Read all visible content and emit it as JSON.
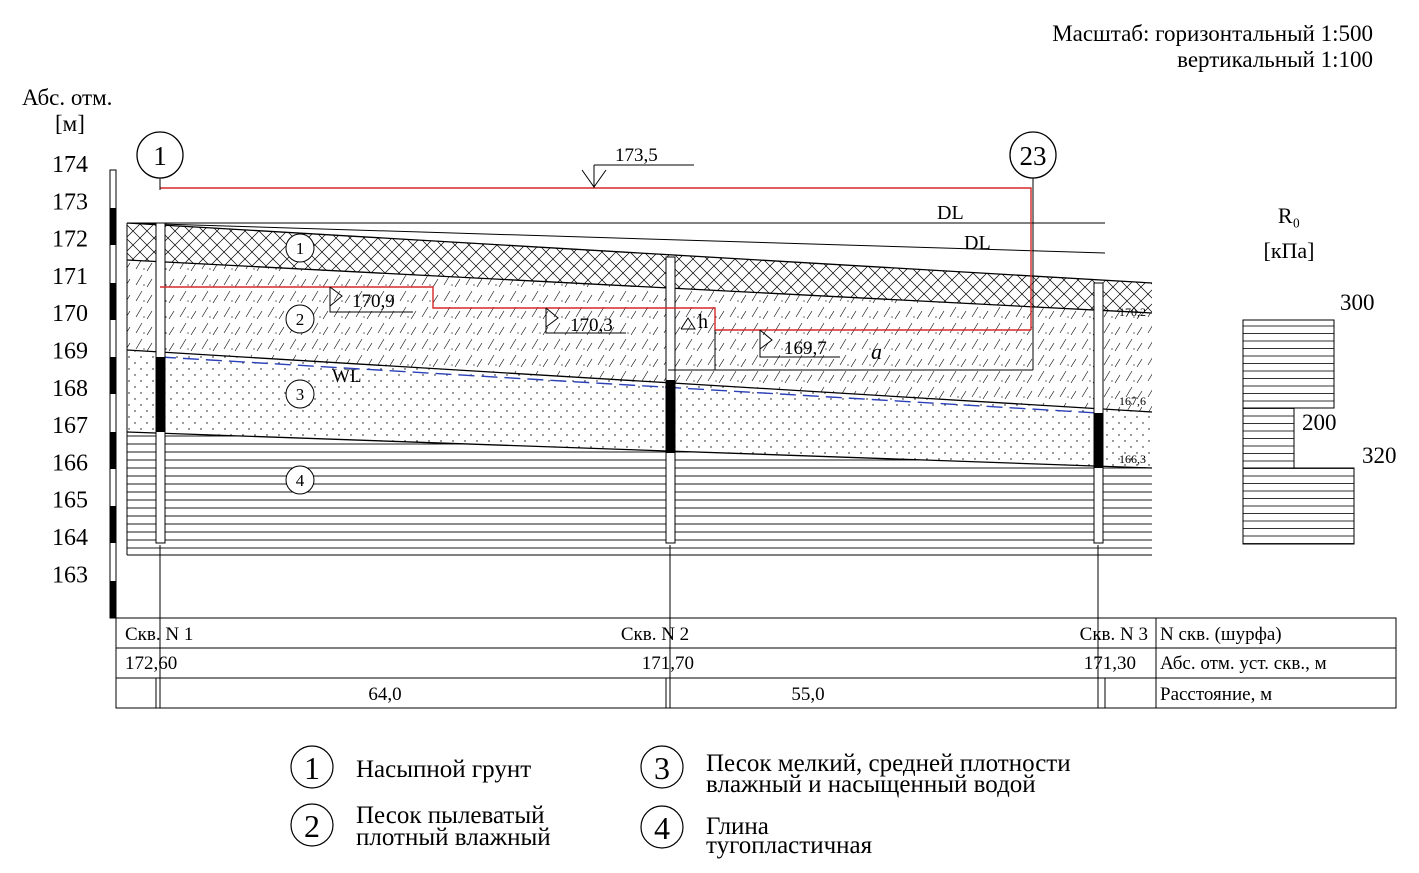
{
  "scale": {
    "line1": "Масштаб: горизонтальный 1:500",
    "line2": "вертикальный 1:100"
  },
  "axis": {
    "title_line1": "Абс. отм.",
    "title_line2": "[м]",
    "ticks": [
      "174",
      "173",
      "172",
      "171",
      "170",
      "169",
      "168",
      "167",
      "166",
      "165",
      "164",
      "163"
    ]
  },
  "markers": {
    "left_circle": "1",
    "right_circle": "23"
  },
  "annotations": {
    "top_level": "173,5",
    "dl_1": "DL",
    "dl_2": "DL",
    "wl": "WL",
    "step_1": "170,9",
    "step_2": "170,3",
    "step_3": "169,7",
    "h": "h",
    "a": "a",
    "right_1": "170,2",
    "right_2": "167,6",
    "right_3": "166,3"
  },
  "layers": [
    {
      "number": "1",
      "label": "Насыпной грунт"
    },
    {
      "number": "2",
      "label_line1": "Песок пылеватый",
      "label_line2": "плотный влажный"
    },
    {
      "number": "3",
      "label_line1": "Песок мелкий, средней плотности",
      "label_line2": "влажный и насыщенный водой"
    },
    {
      "number": "4",
      "label_line1": "Глина",
      "label_line2": "тугопластичная"
    }
  ],
  "r0": {
    "title": "R₀",
    "unit": "[кПа]",
    "values": [
      "300",
      "200",
      "320"
    ]
  },
  "table": {
    "row1_label": "N скв. (шурфа)",
    "row2_label": "Абс. отм. уст. скв., м",
    "row3_label": "Расстояние, м",
    "wells": [
      "Скв. N 1",
      "Скв. N 2",
      "Скв. N 3"
    ],
    "elevations": [
      "172,60",
      "171,70",
      "171,30"
    ],
    "distances": [
      "64,0",
      "55,0"
    ]
  },
  "colors": {
    "foundation": "#d62828",
    "water_line": "#2a3fb8"
  }
}
